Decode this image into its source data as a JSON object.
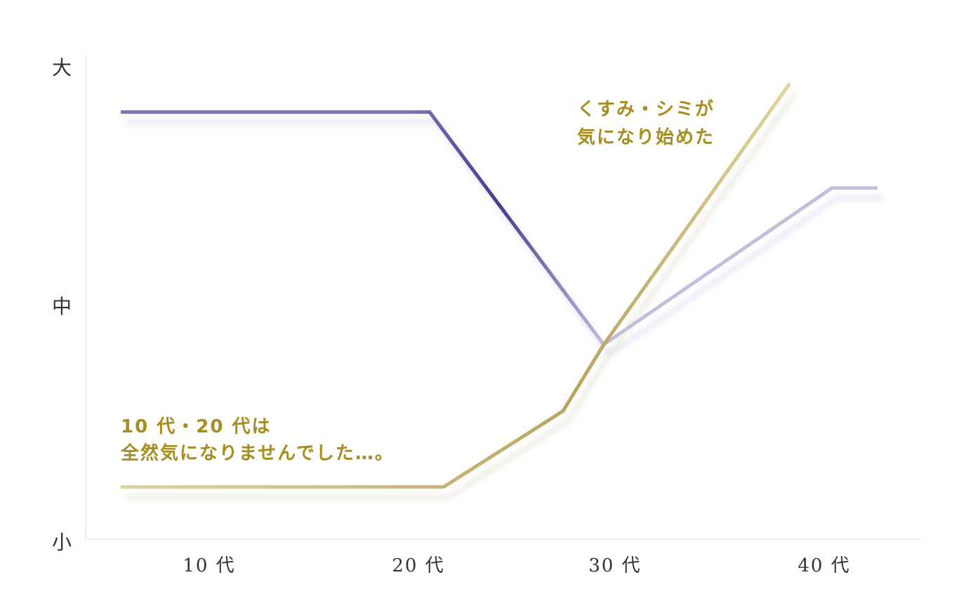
{
  "chart_data": {
    "type": "line",
    "y_ticks": [
      "大",
      "中",
      "小"
    ],
    "ylim": [
      0,
      100
    ],
    "categories": [
      "10代",
      "20代",
      "30代",
      "40代"
    ],
    "x_tick_labels": [
      "10 代",
      "20 代",
      "30 代",
      "40 代"
    ],
    "grid": false,
    "series": [
      {
        "key": "purple",
        "color": "#7f72b6",
        "color_dark": "#463c8c",
        "color_light": "#c4bedd",
        "points": [
          [
            0.0,
            90
          ],
          [
            1.05,
            90
          ],
          [
            1.88,
            41
          ],
          [
            2.95,
            74
          ],
          [
            3.0,
            74
          ]
        ]
      },
      {
        "key": "gold",
        "color": "#c9b87a",
        "color_dark": "#b8a460",
        "color_light": "#e0d49a",
        "points": [
          [
            0.0,
            11
          ],
          [
            1.1,
            11
          ],
          [
            1.7,
            27
          ],
          [
            1.88,
            41
          ],
          [
            2.72,
            96
          ]
        ]
      }
    ],
    "annotations": [
      {
        "lines": [
          "10 代・20 代は",
          "全然気になりませんでした…。"
        ],
        "color": "#a58d1f"
      },
      {
        "lines": [
          "くすみ・シミが",
          "気になり始めた"
        ],
        "color": "#a58d1f"
      }
    ]
  }
}
